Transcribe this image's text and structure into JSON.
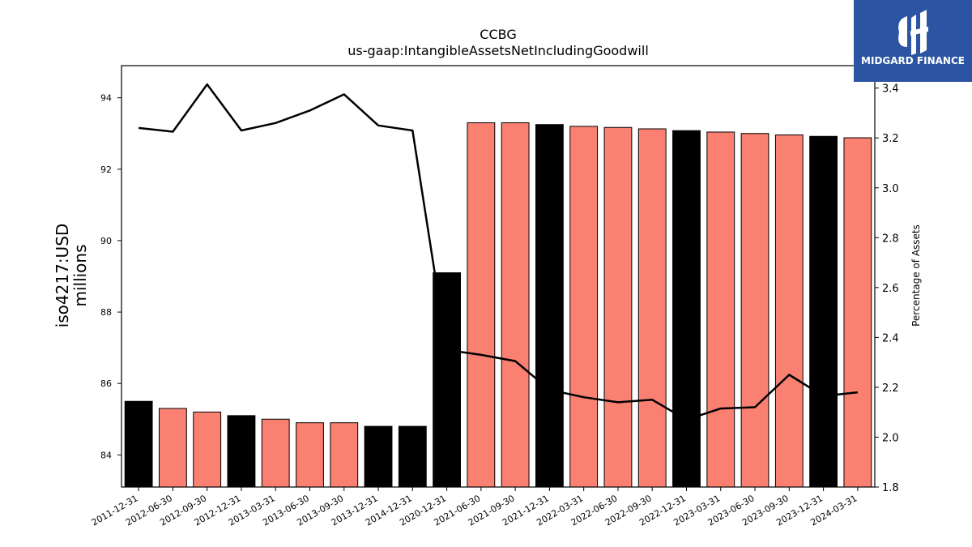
{
  "chart_data": {
    "type": "bar",
    "title": "CCBG",
    "subtitle": "us-gaap:IntangibleAssetsNetIncludingGoodwill",
    "ylabel": [
      "iso4217:USD",
      "millions"
    ],
    "y2label": "Percentage of Assets",
    "categories": [
      "2011-12-31",
      "2012-06-30",
      "2012-09-30",
      "2012-12-31",
      "2013-03-31",
      "2013-06-30",
      "2013-09-30",
      "2013-12-31",
      "2014-12-31",
      "2020-12-31",
      "2021-06-30",
      "2021-09-30",
      "2021-12-31",
      "2022-03-31",
      "2022-06-30",
      "2022-09-30",
      "2022-12-31",
      "2023-03-31",
      "2023-06-30",
      "2023-09-30",
      "2023-12-31",
      "2024-03-31"
    ],
    "series": [
      {
        "axis": "left",
        "values": [
          85.5,
          85.3,
          85.2,
          85.1,
          85.0,
          84.9,
          84.9,
          84.8,
          84.8,
          89.1,
          93.3,
          93.3,
          93.25,
          93.2,
          93.17,
          93.13,
          93.08,
          93.04,
          93.0,
          92.96,
          92.92,
          92.88
        ],
        "colors": [
          "#000000",
          "#fa8072",
          "#fa8072",
          "#000000",
          "#fa8072",
          "#fa8072",
          "#fa8072",
          "#000000",
          "#000000",
          "#000000",
          "#fa8072",
          "#fa8072",
          "#000000",
          "#fa8072",
          "#fa8072",
          "#fa8072",
          "#000000",
          "#fa8072",
          "#fa8072",
          "#fa8072",
          "#000000",
          "#fa8072"
        ]
      },
      {
        "axis": "right",
        "type": "line",
        "color": "#000000",
        "values": [
          3.24,
          3.225,
          3.415,
          3.23,
          3.26,
          3.31,
          3.375,
          3.25,
          3.23,
          2.35,
          2.33,
          2.305,
          2.19,
          2.16,
          2.14,
          2.15,
          2.07,
          2.115,
          2.12,
          2.25,
          2.165,
          2.18
        ]
      }
    ],
    "ylim": [
      83.1,
      94.9
    ],
    "y2lim": [
      1.8,
      3.49
    ],
    "yticks": [
      84,
      86,
      88,
      90,
      92,
      94
    ],
    "y2ticks": [
      1.8,
      2.0,
      2.2,
      2.4,
      2.6,
      2.8,
      3.0,
      3.2,
      3.4
    ],
    "grid": false
  },
  "logo": {
    "text": "MIDGARD FINANCE"
  }
}
